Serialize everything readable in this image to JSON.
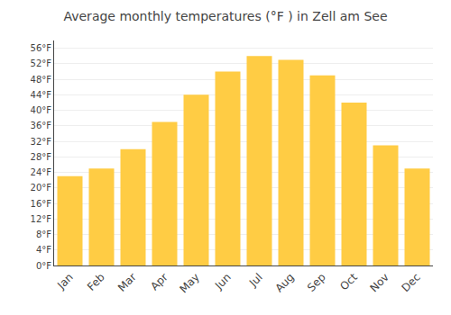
{
  "chart_data": {
    "type": "bar",
    "title": "Average monthly temperatures (°F ) in Zell am See",
    "categories": [
      "Jan",
      "Feb",
      "Mar",
      "Apr",
      "May",
      "Jun",
      "Jul",
      "Aug",
      "Sep",
      "Oct",
      "Nov",
      "Dec"
    ],
    "values": [
      23,
      25,
      30,
      37,
      44,
      50,
      54,
      53,
      49,
      42,
      31,
      25
    ],
    "color": "#FFCC44",
    "ylim": [
      0,
      58
    ],
    "yticks": [
      {
        "value": 0,
        "label": "0°F"
      },
      {
        "value": 4,
        "label": "4°F"
      },
      {
        "value": 8,
        "label": "8°F"
      },
      {
        "value": 12,
        "label": "12°F"
      },
      {
        "value": 16,
        "label": "16°F"
      },
      {
        "value": 20,
        "label": "20°F"
      },
      {
        "value": 24,
        "label": "24°F"
      },
      {
        "value": 28,
        "label": "28°F"
      },
      {
        "value": 32,
        "label": "32°F"
      },
      {
        "value": 36,
        "label": "36°F"
      },
      {
        "value": 40,
        "label": "40°F"
      },
      {
        "value": 44,
        "label": "44°F"
      },
      {
        "value": 48,
        "label": "48°F"
      },
      {
        "value": 52,
        "label": "52°F"
      },
      {
        "value": 56,
        "label": "56°F"
      }
    ],
    "grid": true
  }
}
